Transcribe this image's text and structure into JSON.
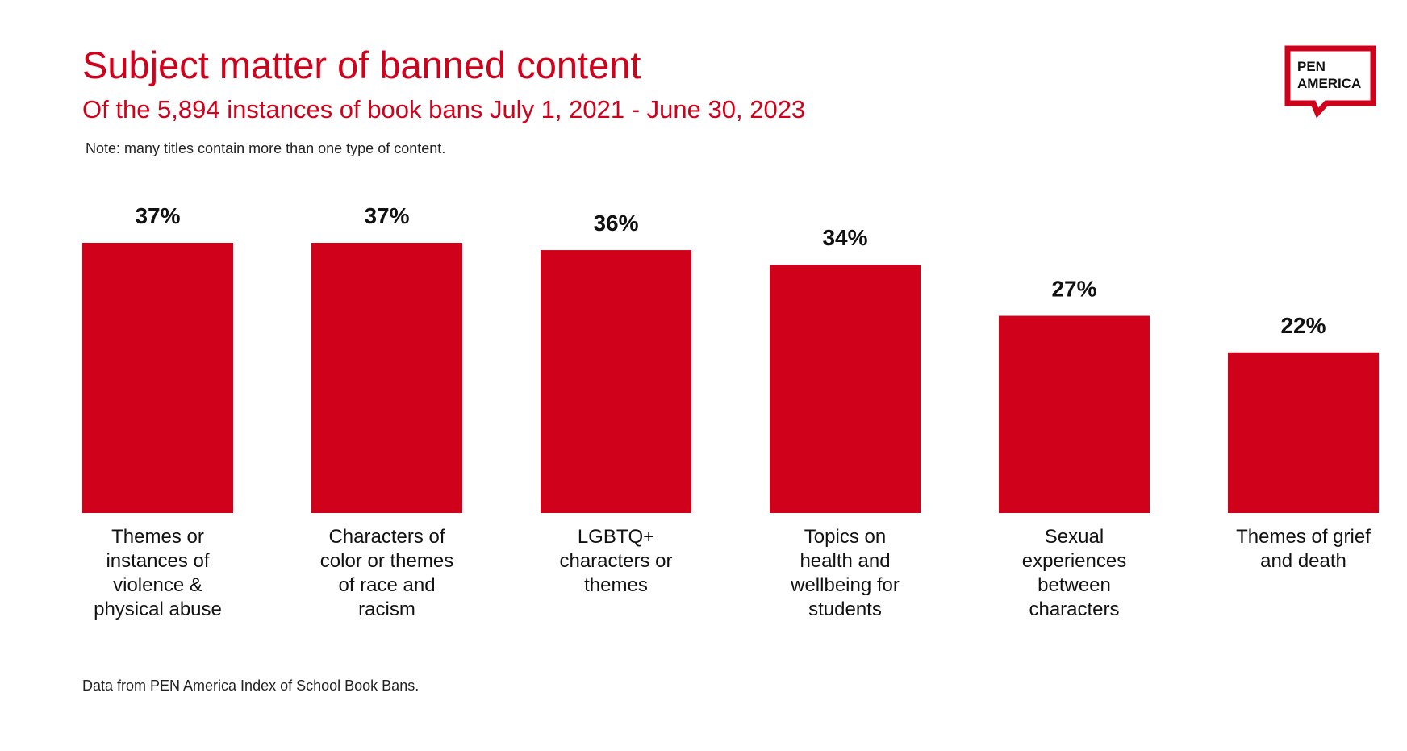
{
  "title": "Subject matter of banned content",
  "subtitle": "Of the 5,894 instances of book bans July 1, 2021 - June 30, 2023",
  "note": "Note: many titles contain more than one type of content.",
  "source": "Data from PEN America Index of School Book Bans.",
  "logo": {
    "line1": "PEN",
    "line2": "AMERICA",
    "color": "#d0011b",
    "icon": "pen-america-speech-bubble-logo"
  },
  "colors": {
    "bar": "#d0011b",
    "text": "#111111"
  },
  "chart_data": {
    "type": "bar",
    "categories": [
      [
        "Themes or",
        "instances of",
        "violence &",
        "physical abuse"
      ],
      [
        "Characters of",
        "color or themes",
        "of race and",
        "racism"
      ],
      [
        "LGBTQ+",
        "characters or",
        "themes"
      ],
      [
        "Topics on",
        "health and",
        "wellbeing for",
        "students"
      ],
      [
        "Sexual",
        "experiences",
        "between",
        "characters"
      ],
      [
        "Themes of grief",
        "and death"
      ]
    ],
    "values": [
      37,
      37,
      36,
      34,
      27,
      22
    ],
    "value_labels": [
      "37%",
      "37%",
      "36%",
      "34%",
      "27%",
      "22%"
    ],
    "unit": "%",
    "ylim": [
      0,
      37
    ],
    "grid": false,
    "legend": "none"
  }
}
